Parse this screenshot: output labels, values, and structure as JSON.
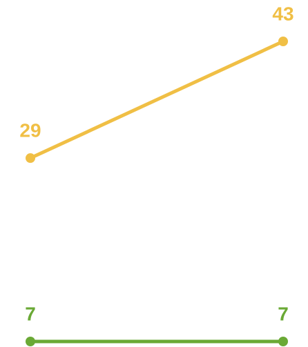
{
  "chart_data": {
    "type": "line",
    "categories": [
      null,
      null
    ],
    "series": [
      {
        "color": "#f0bf45",
        "values": [
          29,
          43
        ]
      },
      {
        "color": "#6aa935",
        "values": [
          7,
          7
        ]
      }
    ],
    "ylim": [
      7,
      43
    ]
  }
}
